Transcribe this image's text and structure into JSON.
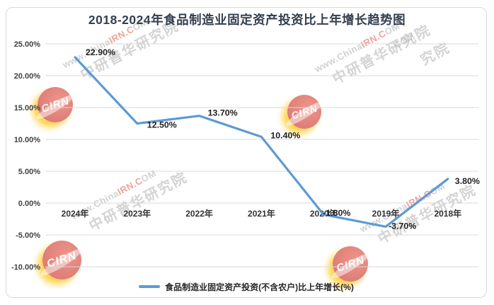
{
  "title": "2018-2024年食品制造业固定资产投资比上年增长趋势图",
  "chart_data": {
    "type": "line",
    "title": "2018-2024年食品制造业固定资产投资比上年增长趋势图",
    "categories": [
      "2024年",
      "2023年",
      "2022年",
      "2021年",
      "2020年",
      "2019年",
      "2018年"
    ],
    "series": [
      {
        "name": "食品制造业固定资产投资(不含农户)比上年增长(%)",
        "values": [
          22.9,
          12.5,
          13.7,
          10.4,
          -1.8,
          -3.7,
          3.8
        ]
      }
    ],
    "data_labels": [
      "22.90%",
      "12.50%",
      "13.70%",
      "10.40%",
      "-1.80%",
      "-3.70%",
      "3.80%"
    ],
    "y_ticks": [
      "25.00%",
      "20.00%",
      "15.00%",
      "10.00%",
      "5.00%",
      "0.00%",
      "-5.00%",
      "-10.00%"
    ],
    "ylim": [
      -10,
      25
    ],
    "xlabel": "",
    "ylabel": "",
    "grid": true,
    "legend_position": "bottom",
    "line_color": "#5B9BD5",
    "grid_color": "#D9D9D9"
  },
  "legend": {
    "label": "食品制造业固定资产投资(不含农户)比上年增长(%)"
  },
  "watermark": {
    "logo_text": "CIRN",
    "line1_a": "www.China",
    "line1_b": "IRN.C",
    "line1_c": "OM",
    "line2": "中研普华研究院",
    "fragment_l1": "COM",
    "fragment_l2": "究院"
  }
}
